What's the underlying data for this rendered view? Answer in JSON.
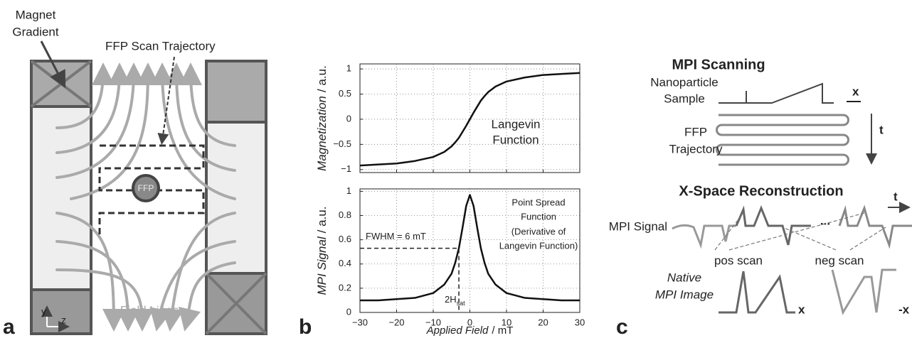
{
  "panel_a": {
    "label": "a",
    "magnet_label": [
      "Magnet",
      "Gradient"
    ],
    "trajectory_label": "FFP Scan Trajectory",
    "ffp": "FFP",
    "field_lines": "Field Lines",
    "axis_y": "y",
    "axis_z": "z"
  },
  "panel_b": {
    "label": "b"
  },
  "chart_data": [
    {
      "type": "line",
      "ylabel": "Magnetization",
      "ylabel_unit": "/ a.u.",
      "x": [
        -30,
        -25,
        -20,
        -15,
        -10,
        -7,
        -5,
        -4,
        -3,
        -2,
        -1,
        0,
        1,
        2,
        3,
        4,
        5,
        7,
        10,
        15,
        20,
        25,
        30
      ],
      "series": [
        {
          "color": "#111111",
          "values": [
            -0.92,
            -0.9,
            -0.88,
            -0.83,
            -0.75,
            -0.65,
            -0.54,
            -0.46,
            -0.37,
            -0.25,
            -0.13,
            0,
            0.13,
            0.25,
            0.37,
            0.46,
            0.54,
            0.65,
            0.75,
            0.83,
            0.88,
            0.9,
            0.92
          ]
        }
      ],
      "xlim": [
        -30,
        30
      ],
      "ylim": [
        -1.06,
        1.1
      ],
      "xticks": [
        -30,
        -20,
        -10,
        0,
        10,
        20,
        30
      ],
      "xtick_labels": false,
      "yticks": [
        1,
        0.5,
        0,
        {
          "value": -0.5,
          "label": "−0.5"
        },
        {
          "value": -1,
          "label": "−1"
        }
      ],
      "grid": true,
      "annotations": [
        "Langevin",
        "Function"
      ]
    },
    {
      "type": "line",
      "ylabel": "MPI Signal",
      "ylabel_unit": "/ a.u.",
      "xlabel": "Applied Field",
      "xlabel_unit": "/ mT",
      "x": [
        -30,
        -25,
        -20,
        -15,
        -10,
        -7,
        -5,
        -4,
        -3,
        -2,
        -1,
        0,
        1,
        2,
        3,
        4,
        5,
        7,
        10,
        15,
        20,
        25,
        30
      ],
      "series": [
        {
          "color": "#111111",
          "values": [
            0.1,
            0.1,
            0.11,
            0.12,
            0.16,
            0.23,
            0.32,
            0.41,
            0.53,
            0.7,
            0.88,
            0.97,
            0.88,
            0.7,
            0.53,
            0.41,
            0.32,
            0.23,
            0.16,
            0.12,
            0.11,
            0.1,
            0.1
          ]
        }
      ],
      "xlim": [
        -30,
        30
      ],
      "ylim": [
        0,
        1.02
      ],
      "xticks": [
        {
          "value": -30,
          "label": "−30"
        },
        {
          "value": -20,
          "label": "−20"
        },
        {
          "value": -10,
          "label": "−10"
        },
        0,
        10,
        20,
        30
      ],
      "xtick_labels": true,
      "yticks": [
        0,
        0.2,
        0.4,
        0.6,
        0.8,
        1
      ],
      "grid": true,
      "annotations": [
        "Point Spread",
        "Function",
        "(Derivative of",
        "Langevin Function)"
      ],
      "fwhm_label": "FWHM = 6 mT",
      "fwhm_line": {
        "x": -3,
        "y": 0.53
      },
      "hsat_label": "2H",
      "hsat_sub": "sat"
    }
  ],
  "panel_c": {
    "label": "c",
    "scan_title": "MPI Scanning",
    "sample_label": [
      "Nanoparticle",
      "Sample"
    ],
    "x_label": "x",
    "trajectory_label": [
      "FFP",
      "Trajectory"
    ],
    "t_label": "t",
    "recon_title": "X-Space Reconstruction",
    "t_label_2": "t",
    "signal_label": "MPI Signal",
    "ellipsis": "...",
    "pos_scan": "pos scan",
    "neg_scan": "neg scan",
    "image_label": [
      "Native",
      "MPI Image"
    ],
    "image_x": "x",
    "image_neg_x": "-x"
  }
}
